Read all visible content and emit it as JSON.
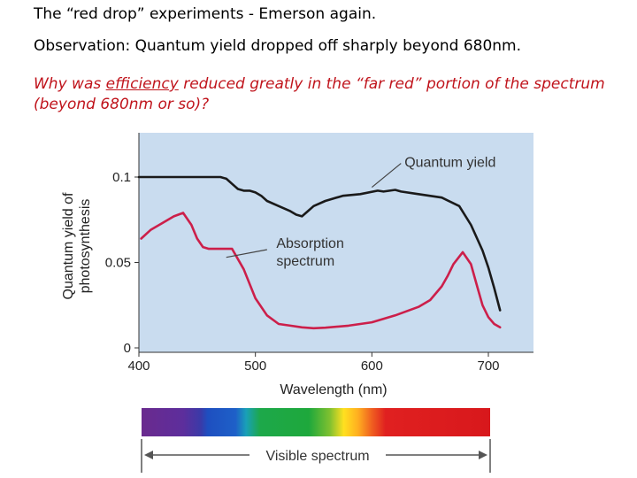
{
  "header": {
    "line1": "The “red drop” experiments - Emerson again.",
    "line2": "Observation: Quantum yield dropped off sharply beyond 680nm.",
    "question_pre": "Why was ",
    "question_emph": "efficiency",
    "question_post": " reduced greatly in the “far red” portion of the spectrum (beyond 680nm or so)?"
  },
  "colors": {
    "panel": "#c9dcef",
    "quantum_line": "#1a1a1a",
    "absorption_line": "#cc1f4a",
    "question_text": "#c0141c"
  },
  "chart_data": {
    "type": "line",
    "xlabel": "Wavelength (nm)",
    "ylabel": "Quantum yield of photosynthesis",
    "xlim": [
      400,
      740
    ],
    "ylim": [
      0,
      0.12
    ],
    "x_ticks": [
      "400",
      "500",
      "600",
      "700"
    ],
    "y_ticks": [
      "0",
      "0.05",
      "0.1"
    ],
    "grid": false,
    "series": [
      {
        "name": "Quantum yield",
        "x": [
          400,
          420,
          440,
          460,
          470,
          475,
          480,
          485,
          490,
          495,
          500,
          505,
          510,
          520,
          530,
          535,
          540,
          545,
          550,
          560,
          575,
          590,
          605,
          610,
          620,
          625,
          640,
          660,
          675,
          685,
          695,
          700,
          705,
          710
        ],
        "y": [
          0.1,
          0.1,
          0.1,
          0.1,
          0.1,
          0.099,
          0.096,
          0.093,
          0.092,
          0.092,
          0.091,
          0.089,
          0.086,
          0.083,
          0.08,
          0.078,
          0.077,
          0.08,
          0.083,
          0.086,
          0.089,
          0.09,
          0.092,
          0.0915,
          0.0925,
          0.0915,
          0.09,
          0.088,
          0.083,
          0.072,
          0.057,
          0.047,
          0.035,
          0.022
        ]
      },
      {
        "name": "Absorption spectrum",
        "x": [
          402,
          410,
          420,
          430,
          438,
          445,
          450,
          455,
          460,
          470,
          480,
          490,
          500,
          510,
          520,
          530,
          540,
          550,
          560,
          580,
          600,
          620,
          640,
          650,
          660,
          665,
          670,
          678,
          685,
          690,
          695,
          700,
          705,
          710
        ],
        "y": [
          0.064,
          0.069,
          0.073,
          0.077,
          0.079,
          0.072,
          0.064,
          0.059,
          0.058,
          0.058,
          0.058,
          0.046,
          0.029,
          0.019,
          0.014,
          0.013,
          0.012,
          0.0115,
          0.0118,
          0.013,
          0.015,
          0.019,
          0.024,
          0.028,
          0.036,
          0.042,
          0.049,
          0.056,
          0.049,
          0.037,
          0.025,
          0.018,
          0.014,
          0.012
        ]
      }
    ],
    "annotations": [
      "Quantum yield",
      "Absorption spectrum"
    ]
  },
  "spectrum": {
    "label": "Visible spectrum"
  }
}
